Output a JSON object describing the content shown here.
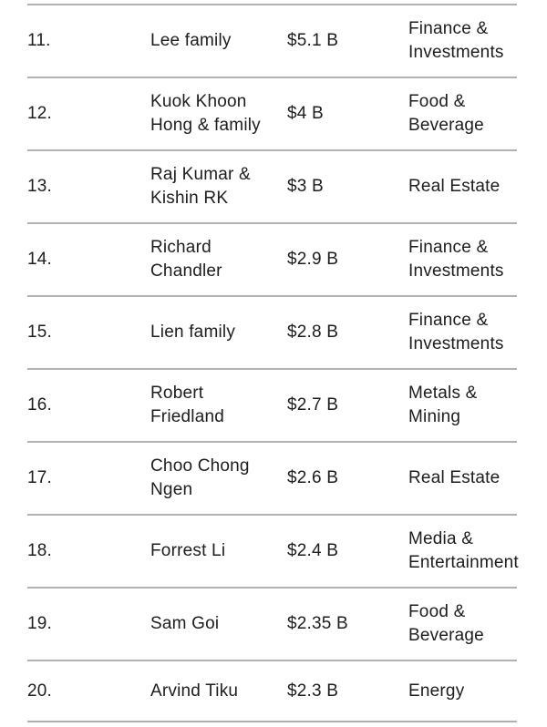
{
  "table": {
    "description": "Wealth ranking list rows 11-20",
    "columns": [
      "rank",
      "name",
      "net_worth",
      "industry"
    ],
    "rows": [
      {
        "rank": "11.",
        "name": "Lee family",
        "net_worth": "$5.1 B",
        "industry": "Finance &\nInvestments"
      },
      {
        "rank": "12.",
        "name": "Kuok Khoon\nHong & family",
        "net_worth": "$4 B",
        "industry": "Food &\nBeverage"
      },
      {
        "rank": "13.",
        "name": "Raj Kumar &\nKishin RK",
        "net_worth": "$3 B",
        "industry": "Real Estate"
      },
      {
        "rank": "14.",
        "name": "Richard\nChandler",
        "net_worth": "$2.9 B",
        "industry": "Finance &\nInvestments"
      },
      {
        "rank": "15.",
        "name": "Lien family",
        "net_worth": "$2.8 B",
        "industry": "Finance &\nInvestments"
      },
      {
        "rank": "16.",
        "name": "Robert\nFriedland",
        "net_worth": "$2.7 B",
        "industry": "Metals &\nMining"
      },
      {
        "rank": "17.",
        "name": "Choo Chong\nNgen",
        "net_worth": "$2.6 B",
        "industry": "Real Estate"
      },
      {
        "rank": "18.",
        "name": "Forrest Li",
        "net_worth": "$2.4 B",
        "industry": "Media &\nEntertainment"
      },
      {
        "rank": "19.",
        "name": "Sam Goi",
        "net_worth": "$2.35 B",
        "industry": "Food &\nBeverage"
      },
      {
        "rank": "20.",
        "name": "Arvind Tiku",
        "net_worth": "$2.3 B",
        "industry": "Energy"
      }
    ]
  },
  "colors": {
    "text": "#1d1d1d",
    "divider": "#b1b1b1",
    "background": "#ffffff"
  }
}
